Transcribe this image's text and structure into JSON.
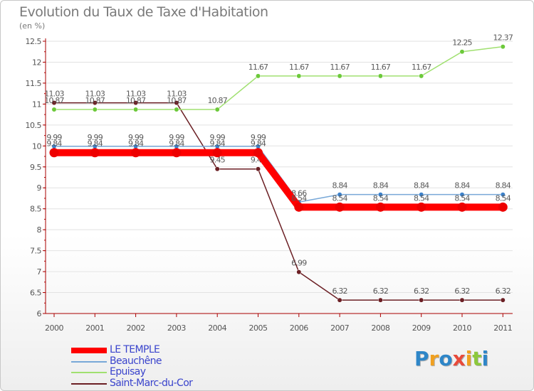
{
  "title": "Evolution du Taux de Taxe d'Habitation",
  "subtitle": "(en %)",
  "logo": {
    "text": "ProXiti",
    "letters": [
      {
        "ch": "P",
        "color": "#2e86c8"
      },
      {
        "ch": "r",
        "color": "#f0a020"
      },
      {
        "ch": "o",
        "color": "#2e86c8"
      },
      {
        "ch": "x",
        "color": "#e84a3a"
      },
      {
        "ch": "i",
        "color": "#f0a020"
      },
      {
        "ch": "t",
        "color": "#8cc83c"
      },
      {
        "ch": "i",
        "color": "#2e86c8"
      }
    ]
  },
  "chart_data": {
    "type": "line",
    "title": "Evolution du Taux de Taxe d'Habitation",
    "ylabel": "(en %)",
    "xlabel": "",
    "ylim": [
      6,
      12.5
    ],
    "y_ticks": [
      "6",
      "6.5",
      "7",
      "7.5",
      "8",
      "8.5",
      "9",
      "9.5",
      "10",
      "10.5",
      "11",
      "11.5",
      "12",
      "12.5"
    ],
    "x": [
      "2000",
      "2001",
      "2002",
      "2003",
      "2004",
      "2005",
      "2006",
      "2007",
      "2008",
      "2009",
      "2010",
      "2011"
    ],
    "grid": "horizontal",
    "legend_position": "bottom-left",
    "series": [
      {
        "name": "Saint-Marc-du-Cor",
        "color": "#6b1f24",
        "marker": "#6b1f24",
        "values": [
          11.03,
          11.03,
          11.03,
          11.03,
          9.45,
          9.45,
          6.99,
          6.32,
          6.32,
          6.32,
          6.32,
          6.32
        ],
        "labels": [
          "11.03",
          "11.03",
          "11.03",
          "11.03",
          "9.45",
          "9.45",
          "6.99",
          "6.32",
          "6.32",
          "6.32",
          "6.32",
          "6.32"
        ]
      },
      {
        "name": "Epuisay",
        "color": "#a0e070",
        "marker": "#6cc93a",
        "values": [
          10.87,
          10.87,
          10.87,
          10.87,
          10.87,
          11.67,
          11.67,
          11.67,
          11.67,
          11.67,
          12.25,
          12.37
        ],
        "labels": [
          "10.87",
          "10.87",
          "10.87",
          "10.87",
          "10.87",
          "11.67",
          "11.67",
          "11.67",
          "11.67",
          "11.67",
          "12.25",
          "12.37"
        ]
      },
      {
        "name": "Beauchêne",
        "color": "#78a8d8",
        "marker": "#3c82cc",
        "values": [
          9.99,
          9.99,
          9.99,
          9.99,
          9.99,
          9.99,
          8.66,
          8.84,
          8.84,
          8.84,
          8.84,
          8.84
        ],
        "labels": [
          "9.99",
          "9.99",
          "9.99",
          "9.99",
          "9.99",
          "9.99",
          "8.66",
          "8.84",
          "8.84",
          "8.84",
          "8.84",
          "8.84"
        ]
      },
      {
        "name": "LE TEMPLE",
        "color": "#ff0000",
        "marker": "#ee0000",
        "values": [
          9.84,
          9.84,
          9.84,
          9.84,
          9.84,
          9.84,
          8.54,
          8.54,
          8.54,
          8.54,
          8.54,
          8.54
        ],
        "labels": [
          "9.84",
          "9.84",
          "9.84",
          "9.84",
          "9.84",
          "9.84",
          "8.54",
          "8.54",
          "8.54",
          "8.54",
          "8.54",
          "8.54"
        ]
      }
    ],
    "legend": [
      {
        "name": "LE TEMPLE",
        "color": "#ff0000"
      },
      {
        "name": "Beauchêne",
        "color": "#78a8d8"
      },
      {
        "name": "Epuisay",
        "color": "#a0e070"
      },
      {
        "name": "Saint-Marc-du-Cor",
        "color": "#6b1f24"
      }
    ]
  }
}
